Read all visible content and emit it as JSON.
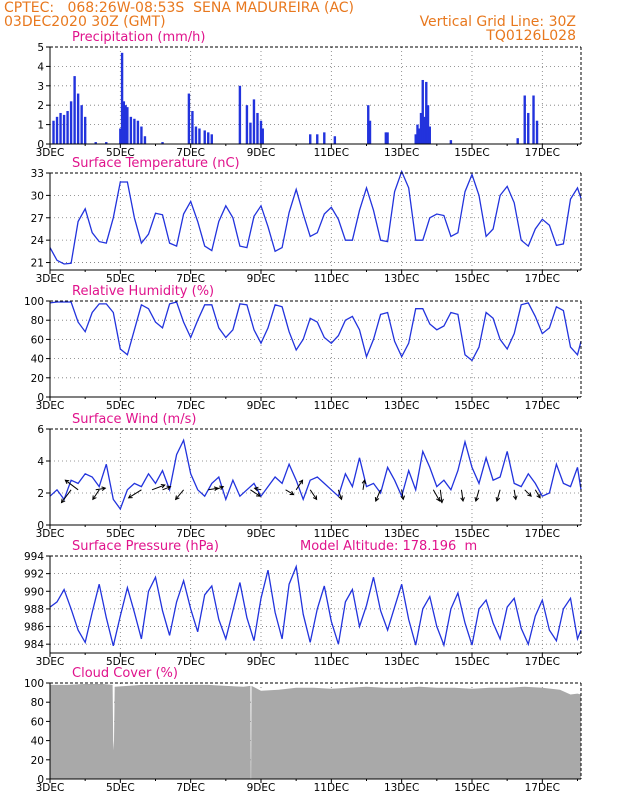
{
  "header": {
    "line1_left": "CPTEC:   068:26W-08:53S  SENA MADUREIRA (AC)",
    "line2_left": "03DEC2020 30Z (GMT)",
    "line2_right": "Vertical Grid Line: 30Z",
    "line3_right": "TQ0126L028"
  },
  "x_axis": {
    "ticks": [
      "3DEC",
      "5DEC",
      "7DEC",
      "9DEC",
      "11DEC",
      "13DEC",
      "15DEC",
      "17DEC"
    ],
    "tick_days": [
      3,
      5,
      7,
      9,
      11,
      13,
      15,
      17
    ],
    "range": [
      3,
      18.1
    ]
  },
  "colors": {
    "line": "#2233dd",
    "title": "#e0138c",
    "header": "#e8781e",
    "cloud": "#a9a9a9",
    "grid": "#777777"
  },
  "chart_data": [
    {
      "id": "precip",
      "type": "bar",
      "title": "Precipitation (mm/h)",
      "ylim": [
        0,
        5
      ],
      "yticks": [
        0,
        1,
        2,
        3,
        4,
        5
      ],
      "x": [
        3.1,
        3.2,
        3.3,
        3.4,
        3.5,
        3.6,
        3.7,
        3.8,
        3.9,
        4.0,
        4.3,
        4.6,
        5.0,
        5.05,
        5.1,
        5.15,
        5.2,
        5.3,
        5.4,
        5.5,
        5.6,
        5.7,
        6.2,
        6.95,
        7.05,
        7.15,
        7.25,
        7.4,
        7.5,
        7.6,
        8.4,
        8.6,
        8.7,
        8.8,
        8.9,
        9.0,
        9.05,
        10.4,
        10.6,
        10.8,
        11.1,
        12.05,
        12.1,
        12.55,
        12.6,
        13.4,
        13.45,
        13.5,
        13.55,
        13.6,
        13.65,
        13.7,
        13.75,
        13.8,
        14.4,
        16.3,
        16.5,
        16.6,
        16.75,
        16.85
      ],
      "values": [
        1.2,
        1.4,
        1.6,
        1.5,
        1.7,
        2.2,
        3.5,
        2.6,
        2.0,
        1.4,
        0.1,
        0.1,
        0.8,
        4.7,
        2.2,
        2.0,
        1.9,
        1.4,
        1.3,
        1.2,
        0.9,
        0.4,
        0.1,
        2.6,
        1.7,
        0.9,
        0.8,
        0.7,
        0.6,
        0.5,
        3.0,
        2.0,
        1.1,
        2.3,
        1.6,
        1.2,
        0.8,
        0.5,
        0.5,
        0.6,
        0.4,
        2.0,
        1.2,
        0.6,
        0.6,
        0.5,
        1.0,
        0.8,
        1.6,
        3.3,
        1.4,
        3.2,
        2.0,
        0.9,
        0.2,
        0.3,
        2.5,
        1.6,
        2.5,
        1.2
      ]
    },
    {
      "id": "temp",
      "type": "line",
      "title": "Surface Temperature (nC)",
      "ylim": [
        20,
        33
      ],
      "yticks": [
        21,
        24,
        27,
        30,
        33
      ],
      "x": [
        3,
        3.2,
        3.4,
        3.6,
        3.8,
        4.0,
        4.2,
        4.4,
        4.6,
        4.8,
        5.0,
        5.2,
        5.4,
        5.6,
        5.8,
        6.0,
        6.2,
        6.4,
        6.6,
        6.8,
        7.0,
        7.2,
        7.4,
        7.6,
        7.8,
        8.0,
        8.2,
        8.4,
        8.6,
        8.8,
        9.0,
        9.2,
        9.4,
        9.6,
        9.8,
        10.0,
        10.2,
        10.4,
        10.6,
        10.8,
        11.0,
        11.2,
        11.4,
        11.6,
        11.8,
        12.0,
        12.2,
        12.4,
        12.6,
        12.8,
        13.0,
        13.2,
        13.4,
        13.6,
        13.8,
        14.0,
        14.2,
        14.4,
        14.6,
        14.8,
        15.0,
        15.2,
        15.4,
        15.6,
        15.8,
        16.0,
        16.2,
        16.4,
        16.6,
        16.8,
        17.0,
        17.2,
        17.4,
        17.6,
        17.8,
        18.0,
        18.1
      ],
      "values": [
        23,
        21.3,
        20.8,
        20.9,
        26.5,
        28.2,
        25,
        23.8,
        23.6,
        27,
        31.8,
        31.8,
        27,
        23.6,
        24.8,
        27.6,
        27.4,
        23.6,
        23.2,
        27.5,
        29.2,
        26.5,
        23.2,
        22.6,
        26.5,
        28.6,
        27,
        23.2,
        23.0,
        27.2,
        28.6,
        25.8,
        22.5,
        23.0,
        27.7,
        30.8,
        27.5,
        24.5,
        25.0,
        27.5,
        28.4,
        26.8,
        24,
        24.0,
        28.0,
        31.0,
        28.0,
        24.0,
        23.8,
        30.5,
        33.2,
        31.0,
        24.0,
        24.0,
        27.0,
        27.5,
        27.3,
        24.5,
        25.0,
        30.5,
        32.8,
        30.0,
        24.5,
        25.5,
        30.0,
        31.2,
        29.0,
        24.0,
        23.2,
        25.5,
        26.8,
        26.0,
        23.3,
        23.5,
        29.5,
        31.0,
        29.6
      ]
    },
    {
      "id": "rh",
      "type": "line",
      "title": "Relative Humidity (%)",
      "ylim": [
        0,
        100
      ],
      "yticks": [
        0,
        20,
        40,
        60,
        80,
        100
      ],
      "x": [
        3,
        3.2,
        3.4,
        3.6,
        3.8,
        4.0,
        4.2,
        4.4,
        4.6,
        4.8,
        5.0,
        5.2,
        5.4,
        5.6,
        5.8,
        6.0,
        6.2,
        6.4,
        6.6,
        6.8,
        7.0,
        7.2,
        7.4,
        7.6,
        7.8,
        8.0,
        8.2,
        8.4,
        8.6,
        8.8,
        9.0,
        9.2,
        9.4,
        9.6,
        9.8,
        10.0,
        10.2,
        10.4,
        10.6,
        10.8,
        11.0,
        11.2,
        11.4,
        11.6,
        11.8,
        12.0,
        12.2,
        12.4,
        12.6,
        12.8,
        13.0,
        13.2,
        13.4,
        13.6,
        13.8,
        14.0,
        14.2,
        14.4,
        14.6,
        14.8,
        15.0,
        15.2,
        15.4,
        15.6,
        15.8,
        16.0,
        16.2,
        16.4,
        16.6,
        16.8,
        17.0,
        17.2,
        17.4,
        17.6,
        17.8,
        18.0,
        18.1
      ],
      "values": [
        98,
        99,
        99,
        99,
        78,
        68,
        88,
        97,
        97,
        88,
        50,
        44,
        70,
        96,
        92,
        78,
        72,
        97,
        99,
        78,
        62,
        80,
        96,
        96,
        72,
        62,
        70,
        97,
        96,
        70,
        56,
        72,
        96,
        94,
        68,
        49,
        60,
        82,
        78,
        62,
        56,
        64,
        80,
        84,
        70,
        42,
        60,
        86,
        88,
        58,
        42,
        56,
        92,
        92,
        76,
        70,
        74,
        88,
        86,
        44,
        38,
        52,
        88,
        82,
        60,
        50,
        66,
        96,
        98,
        84,
        66,
        72,
        94,
        90,
        52,
        44,
        58
      ]
    },
    {
      "id": "wind",
      "type": "line",
      "title": "Surface Wind (m/s)",
      "ylim": [
        0,
        6
      ],
      "yticks": [
        0,
        2,
        4,
        6
      ],
      "x": [
        3,
        3.2,
        3.4,
        3.6,
        3.8,
        4.0,
        4.2,
        4.4,
        4.6,
        4.8,
        5.0,
        5.2,
        5.4,
        5.6,
        5.8,
        6.0,
        6.2,
        6.4,
        6.6,
        6.8,
        7.0,
        7.2,
        7.4,
        7.6,
        7.8,
        8.0,
        8.2,
        8.4,
        8.6,
        8.8,
        9.0,
        9.2,
        9.4,
        9.6,
        9.8,
        10.0,
        10.2,
        10.4,
        10.6,
        10.8,
        11.0,
        11.2,
        11.4,
        11.6,
        11.8,
        12.0,
        12.2,
        12.4,
        12.6,
        12.8,
        13.0,
        13.2,
        13.4,
        13.6,
        13.8,
        14.0,
        14.2,
        14.4,
        14.6,
        14.8,
        15.0,
        15.2,
        15.4,
        15.6,
        15.8,
        16.0,
        16.2,
        16.4,
        16.6,
        16.8,
        17.0,
        17.2,
        17.4,
        17.6,
        17.8,
        18.0,
        18.1
      ],
      "values": [
        1.8,
        2.2,
        1.6,
        2.8,
        2.6,
        3.2,
        3.0,
        2.4,
        3.8,
        1.6,
        1.0,
        2.2,
        2.6,
        2.4,
        3.2,
        2.6,
        3.4,
        2.2,
        4.4,
        5.3,
        3.2,
        2.2,
        1.8,
        2.6,
        3.0,
        1.6,
        2.8,
        1.8,
        2.2,
        2.6,
        1.8,
        2.4,
        3.0,
        2.6,
        3.8,
        2.8,
        1.6,
        2.8,
        3.0,
        2.6,
        2.2,
        1.8,
        3.2,
        2.4,
        4.2,
        2.4,
        2.6,
        2.0,
        3.6,
        2.8,
        1.8,
        3.4,
        2.2,
        4.6,
        3.6,
        2.4,
        2.8,
        2.2,
        3.4,
        5.2,
        3.6,
        2.6,
        4.2,
        2.8,
        3.0,
        4.6,
        2.6,
        2.4,
        3.2,
        2.6,
        1.8,
        2.0,
        3.8,
        2.6,
        2.4,
        3.6,
        2.2
      ],
      "arrows": {
        "x": [
          3.6,
          3.8,
          4.3,
          4.4,
          5.6,
          5.9,
          6.2,
          6.8,
          7.5,
          7.7,
          8.7,
          9.0,
          9.7,
          10.0,
          10.4,
          11.2,
          11.9,
          12.4,
          13.0,
          13.9,
          14.1,
          14.7,
          15.2,
          15.8,
          16.2,
          16.5,
          16.8
        ],
        "u": [
          -0.6,
          -0.8,
          0.6,
          -0.4,
          -0.8,
          0.8,
          0.5,
          -0.5,
          0.6,
          0.5,
          0.6,
          -0.4,
          0.5,
          0.4,
          0.4,
          0.2,
          0.1,
          -0.3,
          0.1,
          0.4,
          0.1,
          0.1,
          -0.2,
          -0.2,
          0.1,
          0.4,
          0.3
        ],
        "v": [
          -0.8,
          0.6,
          0.1,
          -0.6,
          -0.5,
          0.3,
          0.2,
          -0.6,
          0.1,
          0.2,
          -0.4,
          0.1,
          -0.3,
          0.6,
          -0.6,
          -0.6,
          0.6,
          -0.7,
          -0.6,
          -0.7,
          -0.8,
          -0.7,
          -0.7,
          -0.7,
          -0.6,
          -0.4,
          -0.5
        ]
      }
    },
    {
      "id": "pres",
      "type": "line",
      "title": "Surface Pressure (hPa)",
      "annotation": "Model Altitude: 178.196  m",
      "ylim": [
        983,
        994
      ],
      "yticks": [
        984,
        986,
        988,
        990,
        992,
        994
      ],
      "x": [
        3,
        3.2,
        3.4,
        3.6,
        3.8,
        4.0,
        4.2,
        4.4,
        4.6,
        4.8,
        5.0,
        5.2,
        5.4,
        5.6,
        5.8,
        6.0,
        6.2,
        6.4,
        6.6,
        6.8,
        7.0,
        7.2,
        7.4,
        7.6,
        7.8,
        8.0,
        8.2,
        8.4,
        8.6,
        8.8,
        9.0,
        9.2,
        9.4,
        9.6,
        9.8,
        10.0,
        10.2,
        10.4,
        10.6,
        10.8,
        11.0,
        11.2,
        11.4,
        11.6,
        11.8,
        12.0,
        12.2,
        12.4,
        12.6,
        12.8,
        13.0,
        13.2,
        13.4,
        13.6,
        13.8,
        14.0,
        14.2,
        14.4,
        14.6,
        14.8,
        15.0,
        15.2,
        15.4,
        15.6,
        15.8,
        16.0,
        16.2,
        16.4,
        16.6,
        16.8,
        17.0,
        17.2,
        17.4,
        17.6,
        17.8,
        18.0,
        18.1
      ],
      "values": [
        988.2,
        988.8,
        990.2,
        988.0,
        985.6,
        984.2,
        987.6,
        990.8,
        987.0,
        983.8,
        987.2,
        990.4,
        987.6,
        984.6,
        990.0,
        991.6,
        987.8,
        985.0,
        988.8,
        991.2,
        988.0,
        985.4,
        989.6,
        990.6,
        986.8,
        984.6,
        987.8,
        991.0,
        987.0,
        984.4,
        989.2,
        992.4,
        987.6,
        984.6,
        990.8,
        992.8,
        987.4,
        984.2,
        988.0,
        990.6,
        986.6,
        984.0,
        988.8,
        990.2,
        986.0,
        988.4,
        991.6,
        987.8,
        985.6,
        988.2,
        990.8,
        986.8,
        983.9,
        988.0,
        989.4,
        986.0,
        983.9,
        988.0,
        989.8,
        986.4,
        983.9,
        988.0,
        989.0,
        986.4,
        984.6,
        988.2,
        989.2,
        985.8,
        984.0,
        987.2,
        989.0,
        985.6,
        984.4,
        988.0,
        989.2,
        984.6,
        985.6
      ]
    },
    {
      "id": "cloud",
      "type": "area",
      "title": "Cloud Cover (%)",
      "ylim": [
        0,
        100
      ],
      "yticks": [
        0,
        20,
        40,
        60,
        80,
        100
      ],
      "x": [
        3,
        3.5,
        4,
        4.5,
        4.78,
        4.8,
        4.82,
        4.84,
        5.2,
        5.6,
        6.0,
        6.5,
        7.0,
        7.5,
        8.0,
        8.5,
        8.7,
        8.71,
        8.72,
        8.73,
        9.0,
        9.5,
        10.0,
        10.5,
        11.0,
        11.5,
        12.0,
        12.5,
        13.0,
        13.5,
        14.0,
        14.5,
        15.0,
        15.5,
        16.0,
        16.5,
        17.0,
        17.5,
        17.8,
        18.0,
        18.1
      ],
      "values": [
        98,
        98,
        99,
        99,
        98,
        30,
        40,
        96,
        97,
        98,
        98,
        98,
        98,
        98,
        97,
        96,
        97,
        0,
        0,
        97,
        92,
        93,
        95,
        95,
        94,
        95,
        96,
        95,
        95,
        96,
        95,
        95,
        94,
        95,
        95,
        96,
        95,
        93,
        88,
        89,
        88
      ]
    }
  ]
}
